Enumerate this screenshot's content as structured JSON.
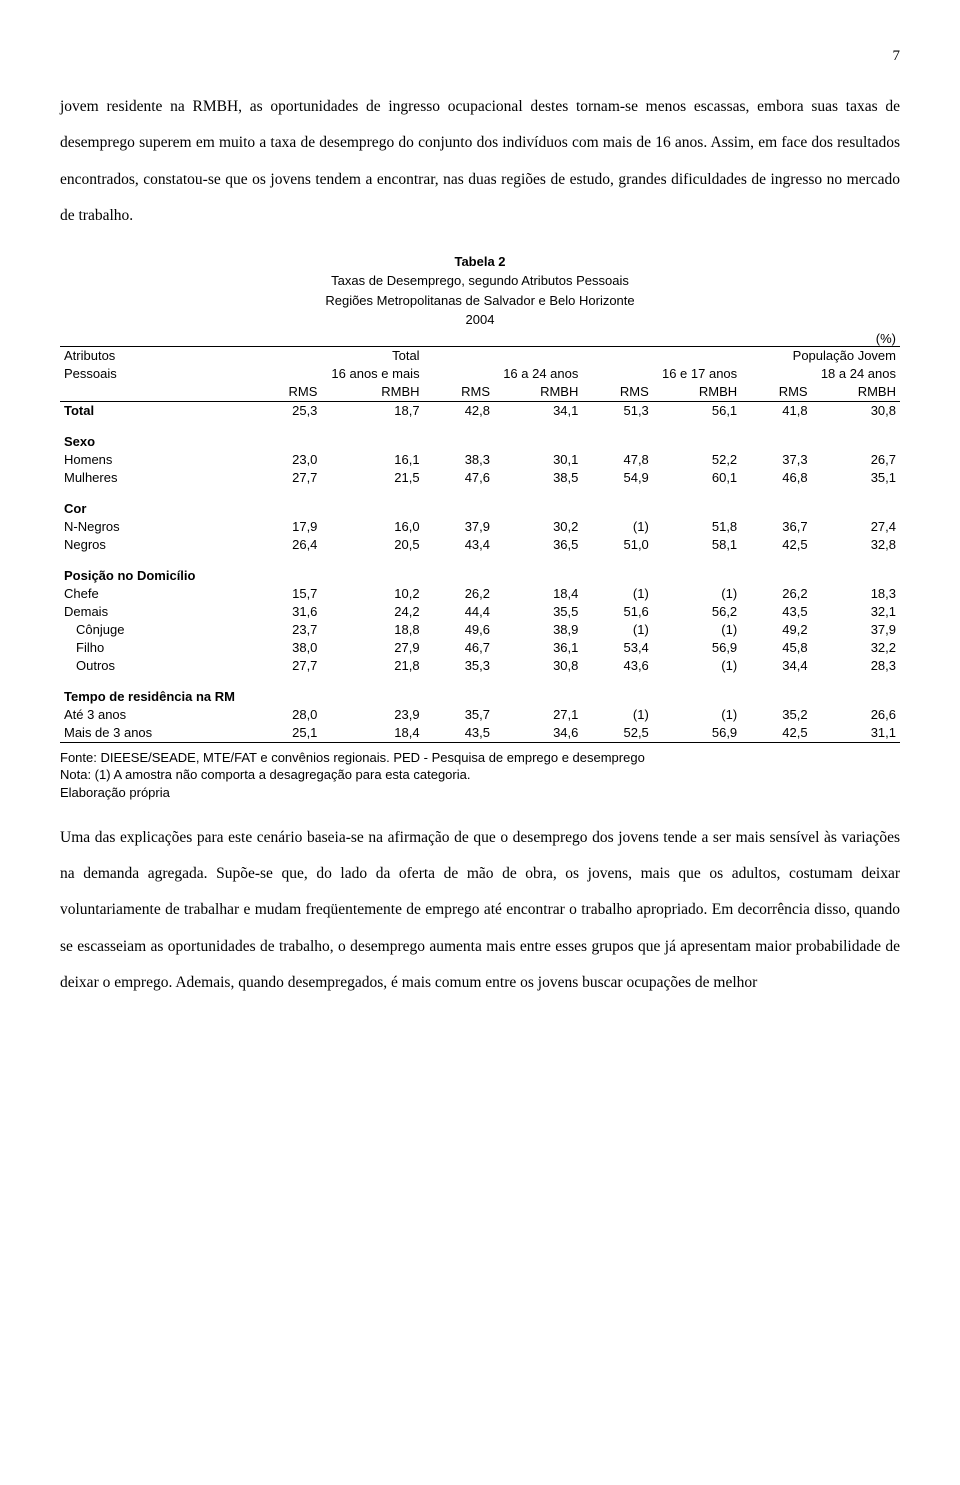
{
  "page_number": "7",
  "para1": "jovem residente na RMBH, as oportunidades de ingresso ocupacional destes tornam-se menos escassas, embora suas taxas de desemprego superem em muito a taxa de desemprego do conjunto dos indivíduos com mais de 16 anos. Assim, em face dos resultados encontrados, constatou-se que os jovens tendem a encontrar, nas duas regiões de estudo, grandes dificuldades de ingresso no mercado de trabalho.",
  "table": {
    "title": "Tabela 2",
    "subtitle1": "Taxas de Desemprego, segundo Atributos Pessoais",
    "subtitle2": "Regiões Metropolitanas de Salvador e Belo Horizonte",
    "subtitle3": "2004",
    "percent": "(%)",
    "header": {
      "attr1": "Atributos",
      "attr2": "Pessoais",
      "total": "Total",
      "total_sub": "16 anos e mais",
      "pop": "População Jovem",
      "c1": "16 a 24 anos",
      "c2": "16 e 17 anos",
      "c3": "18 a 24 anos",
      "rms": "RMS",
      "rmbh": "RMBH"
    },
    "rows": [
      {
        "label": "Total",
        "section": true,
        "v": [
          "25,3",
          "18,7",
          "42,8",
          "34,1",
          "51,3",
          "56,1",
          "41,8",
          "30,8"
        ]
      },
      {
        "label": "Sexo",
        "section": true,
        "spacer_before": true
      },
      {
        "label": "Homens",
        "v": [
          "23,0",
          "16,1",
          "38,3",
          "30,1",
          "47,8",
          "52,2",
          "37,3",
          "26,7"
        ]
      },
      {
        "label": "Mulheres",
        "v": [
          "27,7",
          "21,5",
          "47,6",
          "38,5",
          "54,9",
          "60,1",
          "46,8",
          "35,1"
        ]
      },
      {
        "label": "Cor",
        "section": true,
        "spacer_before": true
      },
      {
        "label": "N-Negros",
        "v": [
          "17,9",
          "16,0",
          "37,9",
          "30,2",
          "(1)",
          "51,8",
          "36,7",
          "27,4"
        ]
      },
      {
        "label": "Negros",
        "v": [
          "26,4",
          "20,5",
          "43,4",
          "36,5",
          "51,0",
          "58,1",
          "42,5",
          "32,8"
        ]
      },
      {
        "label": "Posição no Domicílio",
        "section": true,
        "spacer_before": true
      },
      {
        "label": "Chefe",
        "v": [
          "15,7",
          "10,2",
          "26,2",
          "18,4",
          "(1)",
          "(1)",
          "26,2",
          "18,3"
        ]
      },
      {
        "label": "Demais",
        "v": [
          "31,6",
          "24,2",
          "44,4",
          "35,5",
          "51,6",
          "56,2",
          "43,5",
          "32,1"
        ]
      },
      {
        "label": "Cônjuge",
        "indent": true,
        "v": [
          "23,7",
          "18,8",
          "49,6",
          "38,9",
          "(1)",
          "(1)",
          "49,2",
          "37,9"
        ]
      },
      {
        "label": "Filho",
        "indent": true,
        "v": [
          "38,0",
          "27,9",
          "46,7",
          "36,1",
          "53,4",
          "56,9",
          "45,8",
          "32,2"
        ]
      },
      {
        "label": "Outros",
        "indent": true,
        "v": [
          "27,7",
          "21,8",
          "35,3",
          "30,8",
          "43,6",
          "(1)",
          "34,4",
          "28,3"
        ]
      },
      {
        "label": "Tempo de residência na RM",
        "section": true,
        "spacer_before": true
      },
      {
        "label": "Até 3 anos",
        "v": [
          "28,0",
          "23,9",
          "35,7",
          "27,1",
          "(1)",
          "(1)",
          "35,2",
          "26,6"
        ]
      },
      {
        "label": "Mais de 3 anos",
        "v": [
          "25,1",
          "18,4",
          "43,5",
          "34,6",
          "52,5",
          "56,9",
          "42,5",
          "31,1"
        ]
      }
    ],
    "footnote1": "Fonte: DIEESE/SEADE, MTE/FAT e convênios regionais. PED - Pesquisa de emprego e desemprego",
    "footnote2": "Nota: (1) A amostra não comporta a desagregação para esta categoria.",
    "footnote3": "Elaboração própria"
  },
  "para2": "Uma das explicações para este cenário baseia-se na afirmação de que o desemprego dos jovens tende a ser mais sensível às variações na demanda agregada. Supõe-se que, do lado da oferta de mão de obra, os jovens, mais que os adultos, costumam deixar voluntariamente de trabalhar e mudam freqüentemente de emprego até encontrar o trabalho apropriado. Em decorrência disso, quando se escasseiam as oportunidades de trabalho, o desemprego aumenta mais entre esses grupos que já apresentam maior probabilidade de deixar o emprego. Ademais, quando desempregados, é mais comum entre os jovens buscar ocupações de melhor"
}
